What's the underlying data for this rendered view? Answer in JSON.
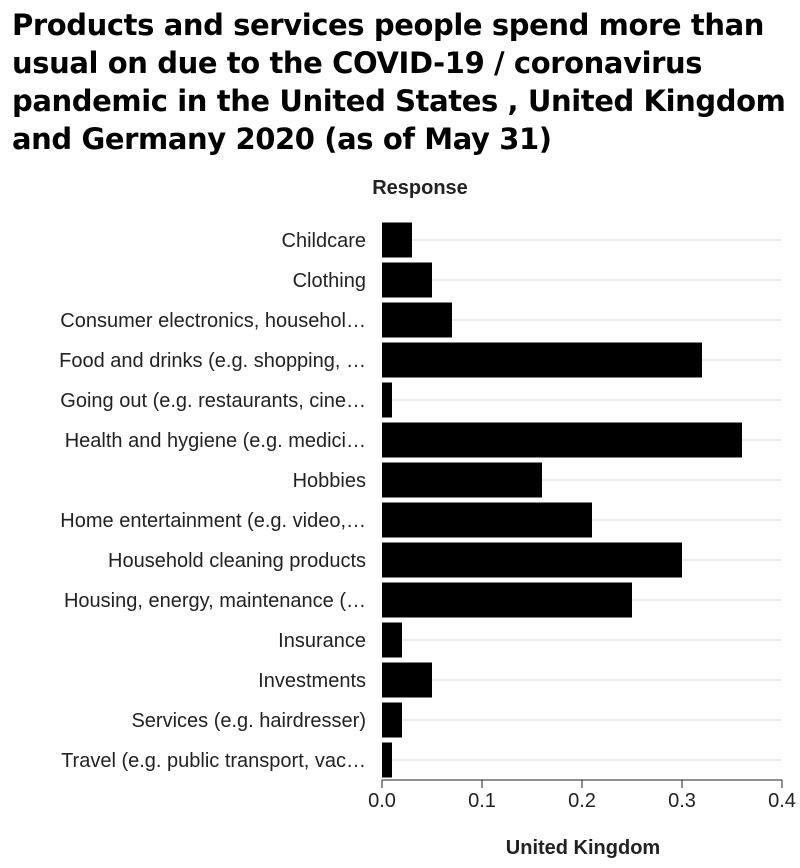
{
  "chart_data": {
    "type": "bar",
    "orientation": "horizontal",
    "title": "Products and services people spend more than usual on due to the COVID-19 / coronavirus pandemic in the United States , United Kingdom and Germany 2020 (as of May 31)",
    "ylabel": "Response",
    "xlabel": "United Kingdom",
    "categories": [
      "Childcare",
      "Clothing",
      "Consumer electronics, househol…",
      "Food and drinks (e.g. shopping, …",
      "Going out (e.g. restaurants, cine…",
      "Health and hygiene (e.g. medici…",
      "Hobbies",
      "Home entertainment (e.g. video,…",
      "Household cleaning products",
      "Housing, energy, maintenance (…",
      "Insurance",
      "Investments",
      "Services (e.g. hairdresser)",
      "Travel (e.g. public transport, vac…"
    ],
    "values": [
      0.03,
      0.05,
      0.07,
      0.32,
      0.01,
      0.36,
      0.16,
      0.21,
      0.3,
      0.25,
      0.02,
      0.05,
      0.02,
      0.01
    ],
    "xlim": [
      0,
      0.4
    ],
    "xticks": [
      "0.0",
      "0.1",
      "0.2",
      "0.3",
      "0.4"
    ],
    "xtick_values": [
      0,
      0.1,
      0.2,
      0.3,
      0.4
    ],
    "grid": true,
    "legend": "none",
    "colors": {
      "bar": "#000000",
      "grid": "#d9d9d9",
      "axis": "#222222"
    }
  }
}
